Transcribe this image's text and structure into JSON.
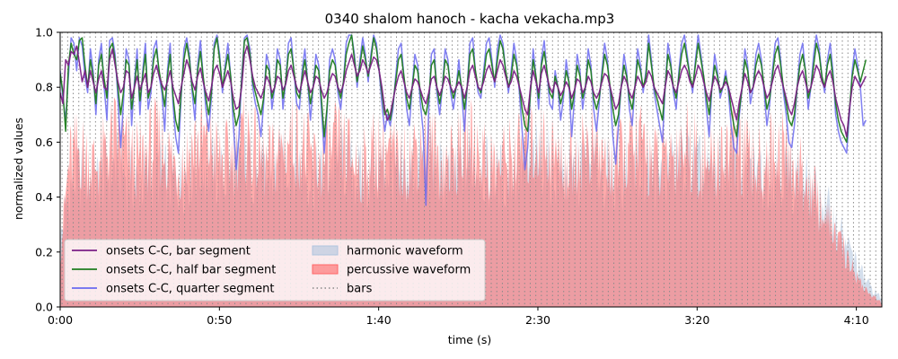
{
  "chart_data": {
    "type": "line",
    "title": "0340 shalom hanoch - kacha vekacha.mp3",
    "xlabel": "time (s)",
    "ylabel": "normalized values",
    "xlim": [
      0,
      258
    ],
    "ylim": [
      0,
      1.0
    ],
    "x_ticks": [
      {
        "value": 0,
        "label": "0:00"
      },
      {
        "value": 50,
        "label": "0:50"
      },
      {
        "value": 100,
        "label": "1:40"
      },
      {
        "value": 150,
        "label": "2:30"
      },
      {
        "value": 200,
        "label": "3:20"
      },
      {
        "value": 250,
        "label": "4:10"
      }
    ],
    "y_ticks": [
      {
        "value": 0.0,
        "label": "0.0"
      },
      {
        "value": 0.2,
        "label": "0.2"
      },
      {
        "value": 0.4,
        "label": "0.4"
      },
      {
        "value": 0.6,
        "label": "0.6"
      },
      {
        "value": 0.8,
        "label": "0.8"
      },
      {
        "value": 1.0,
        "label": "1.0"
      }
    ],
    "grid": false,
    "legend_position": "lower-left",
    "legend_columns": 2,
    "bars_interval_s": 1.75,
    "series": [
      {
        "name": "onsets C-C, bar segment",
        "kind": "line",
        "color": "#7b1f86",
        "x_range": [
          0,
          253
        ],
        "values": [
          0.78,
          0.74,
          0.9,
          0.88,
          0.93,
          0.92,
          0.95,
          0.89,
          0.82,
          0.86,
          0.8,
          0.86,
          0.82,
          0.78,
          0.83,
          0.86,
          0.8,
          0.79,
          0.9,
          0.94,
          0.88,
          0.82,
          0.78,
          0.8,
          0.86,
          0.85,
          0.76,
          0.8,
          0.84,
          0.79,
          0.82,
          0.85,
          0.78,
          0.8,
          0.85,
          0.88,
          0.84,
          0.81,
          0.79,
          0.82,
          0.86,
          0.8,
          0.77,
          0.74,
          0.8,
          0.85,
          0.9,
          0.87,
          0.82,
          0.79,
          0.84,
          0.87,
          0.82,
          0.78,
          0.75,
          0.8,
          0.86,
          0.88,
          0.85,
          0.8,
          0.83,
          0.86,
          0.82,
          0.76,
          0.72,
          0.73,
          0.8,
          0.92,
          0.95,
          0.9,
          0.84,
          0.8,
          0.78,
          0.76,
          0.79,
          0.84,
          0.82,
          0.78,
          0.8,
          0.84,
          0.83,
          0.79,
          0.81,
          0.86,
          0.88,
          0.84,
          0.8,
          0.78,
          0.82,
          0.86,
          0.82,
          0.78,
          0.8,
          0.84,
          0.83,
          0.79,
          0.76,
          0.78,
          0.82,
          0.85,
          0.84,
          0.8,
          0.78,
          0.81,
          0.86,
          0.89,
          0.92,
          0.88,
          0.84,
          0.86,
          0.9,
          0.88,
          0.85,
          0.88,
          0.91,
          0.9,
          0.86,
          0.8,
          0.72,
          0.68,
          0.7,
          0.75,
          0.8,
          0.84,
          0.86,
          0.82,
          0.78,
          0.76,
          0.8,
          0.83,
          0.82,
          0.79,
          0.76,
          0.74,
          0.78,
          0.83,
          0.84,
          0.8,
          0.77,
          0.8,
          0.84,
          0.83,
          0.8,
          0.78,
          0.8,
          0.82,
          0.8,
          0.76,
          0.8,
          0.86,
          0.88,
          0.84,
          0.8,
          0.79,
          0.82,
          0.86,
          0.88,
          0.85,
          0.82,
          0.86,
          0.9,
          0.88,
          0.84,
          0.8,
          0.82,
          0.86,
          0.84,
          0.8,
          0.76,
          0.72,
          0.7,
          0.8,
          0.86,
          0.82,
          0.78,
          0.85,
          0.88,
          0.84,
          0.8,
          0.78,
          0.82,
          0.8,
          0.77,
          0.79,
          0.82,
          0.8,
          0.76,
          0.79,
          0.83,
          0.82,
          0.78,
          0.8,
          0.84,
          0.82,
          0.78,
          0.76,
          0.78,
          0.82,
          0.85,
          0.84,
          0.8,
          0.76,
          0.72,
          0.74,
          0.8,
          0.84,
          0.82,
          0.78,
          0.76,
          0.8,
          0.84,
          0.82,
          0.8,
          0.82,
          0.86,
          0.84,
          0.8,
          0.78,
          0.76,
          0.74,
          0.8,
          0.86,
          0.84,
          0.8,
          0.78,
          0.82,
          0.86,
          0.88,
          0.86,
          0.82,
          0.8,
          0.84,
          0.88,
          0.86,
          0.82,
          0.78,
          0.75,
          0.8,
          0.84,
          0.82,
          0.79,
          0.8,
          0.82,
          0.8,
          0.76,
          0.72,
          0.68,
          0.75,
          0.8,
          0.85,
          0.82,
          0.78,
          0.8,
          0.84,
          0.86,
          0.84,
          0.8,
          0.76,
          0.78,
          0.82,
          0.86,
          0.88,
          0.84,
          0.8,
          0.76,
          0.72,
          0.7,
          0.74,
          0.8,
          0.84,
          0.86,
          0.82,
          0.78,
          0.8,
          0.84,
          0.88,
          0.86,
          0.82,
          0.8,
          0.84,
          0.86,
          0.82,
          0.76,
          0.72,
          0.68,
          0.66,
          0.62,
          0.72,
          0.8,
          0.84,
          0.82,
          0.8,
          0.82,
          0.84
        ]
      },
      {
        "name": "onsets C-C, half bar segment",
        "kind": "line",
        "color": "#1e7d1e",
        "x_range": [
          0,
          253
        ],
        "values": [
          0.85,
          0.78,
          0.64,
          0.88,
          0.96,
          0.92,
          0.9,
          0.97,
          0.98,
          0.88,
          0.8,
          0.9,
          0.84,
          0.74,
          0.88,
          0.92,
          0.83,
          0.76,
          0.94,
          0.96,
          0.9,
          0.8,
          0.7,
          0.78,
          0.9,
          0.88,
          0.72,
          0.8,
          0.9,
          0.75,
          0.84,
          0.92,
          0.76,
          0.8,
          0.9,
          0.94,
          0.86,
          0.8,
          0.73,
          0.84,
          0.92,
          0.77,
          0.68,
          0.64,
          0.78,
          0.9,
          0.96,
          0.9,
          0.8,
          0.74,
          0.86,
          0.93,
          0.84,
          0.76,
          0.7,
          0.78,
          0.94,
          0.98,
          0.9,
          0.8,
          0.86,
          0.92,
          0.84,
          0.72,
          0.66,
          0.7,
          0.82,
          0.97,
          0.98,
          0.92,
          0.82,
          0.78,
          0.74,
          0.7,
          0.76,
          0.88,
          0.86,
          0.76,
          0.8,
          0.9,
          0.88,
          0.76,
          0.82,
          0.92,
          0.94,
          0.86,
          0.78,
          0.76,
          0.84,
          0.9,
          0.82,
          0.74,
          0.8,
          0.88,
          0.86,
          0.76,
          0.62,
          0.72,
          0.86,
          0.9,
          0.88,
          0.8,
          0.76,
          0.82,
          0.92,
          0.96,
          0.99,
          0.9,
          0.82,
          0.88,
          0.95,
          0.9,
          0.84,
          0.9,
          0.98,
          0.94,
          0.86,
          0.78,
          0.7,
          0.72,
          0.68,
          0.74,
          0.82,
          0.9,
          0.92,
          0.84,
          0.76,
          0.72,
          0.8,
          0.88,
          0.86,
          0.78,
          0.72,
          0.7,
          0.76,
          0.88,
          0.9,
          0.8,
          0.74,
          0.8,
          0.9,
          0.88,
          0.8,
          0.76,
          0.8,
          0.86,
          0.8,
          0.72,
          0.8,
          0.92,
          0.94,
          0.86,
          0.8,
          0.78,
          0.84,
          0.92,
          0.94,
          0.88,
          0.82,
          0.9,
          0.97,
          0.94,
          0.86,
          0.8,
          0.84,
          0.92,
          0.88,
          0.8,
          0.72,
          0.66,
          0.64,
          0.78,
          0.9,
          0.84,
          0.76,
          0.88,
          0.93,
          0.86,
          0.78,
          0.76,
          0.84,
          0.8,
          0.74,
          0.78,
          0.86,
          0.82,
          0.72,
          0.78,
          0.88,
          0.84,
          0.76,
          0.8,
          0.9,
          0.86,
          0.76,
          0.72,
          0.76,
          0.84,
          0.92,
          0.88,
          0.8,
          0.72,
          0.66,
          0.7,
          0.8,
          0.88,
          0.84,
          0.76,
          0.72,
          0.8,
          0.9,
          0.86,
          0.8,
          0.84,
          0.96,
          0.88,
          0.8,
          0.76,
          0.72,
          0.68,
          0.8,
          0.92,
          0.88,
          0.8,
          0.76,
          0.84,
          0.92,
          0.96,
          0.9,
          0.84,
          0.8,
          0.88,
          0.96,
          0.9,
          0.84,
          0.76,
          0.7,
          0.8,
          0.88,
          0.84,
          0.78,
          0.8,
          0.84,
          0.8,
          0.72,
          0.66,
          0.62,
          0.72,
          0.8,
          0.9,
          0.86,
          0.78,
          0.8,
          0.88,
          0.92,
          0.88,
          0.8,
          0.72,
          0.76,
          0.84,
          0.92,
          0.95,
          0.88,
          0.8,
          0.74,
          0.68,
          0.66,
          0.7,
          0.8,
          0.88,
          0.92,
          0.86,
          0.76,
          0.8,
          0.88,
          0.96,
          0.92,
          0.84,
          0.8,
          0.88,
          0.92,
          0.84,
          0.74,
          0.68,
          0.64,
          0.62,
          0.6,
          0.72,
          0.84,
          0.9,
          0.86,
          0.82,
          0.86,
          0.9
        ]
      },
      {
        "name": "onsets C-C, quarter segment",
        "kind": "line",
        "color": "#6a6af0",
        "x_range": [
          0,
          253
        ],
        "values": [
          0.86,
          0.76,
          0.68,
          0.84,
          0.98,
          0.96,
          0.86,
          0.98,
          0.95,
          0.84,
          0.78,
          0.94,
          0.86,
          0.7,
          0.9,
          0.96,
          0.8,
          0.68,
          0.97,
          0.98,
          0.92,
          0.76,
          0.58,
          0.74,
          0.94,
          0.9,
          0.66,
          0.82,
          0.94,
          0.7,
          0.86,
          0.96,
          0.72,
          0.78,
          0.94,
          0.97,
          0.84,
          0.78,
          0.64,
          0.86,
          0.96,
          0.74,
          0.62,
          0.56,
          0.76,
          0.94,
          0.98,
          0.92,
          0.78,
          0.68,
          0.88,
          0.97,
          0.84,
          0.72,
          0.64,
          0.76,
          0.96,
          0.99,
          0.92,
          0.78,
          0.88,
          0.96,
          0.84,
          0.66,
          0.5,
          0.62,
          0.84,
          0.98,
          0.99,
          0.94,
          0.8,
          0.74,
          0.7,
          0.62,
          0.74,
          0.92,
          0.88,
          0.72,
          0.8,
          0.94,
          0.9,
          0.72,
          0.82,
          0.96,
          0.98,
          0.86,
          0.74,
          0.72,
          0.86,
          0.94,
          0.82,
          0.68,
          0.8,
          0.92,
          0.88,
          0.72,
          0.56,
          0.7,
          0.9,
          0.94,
          0.9,
          0.78,
          0.72,
          0.82,
          0.96,
          0.99,
          0.99,
          0.92,
          0.8,
          0.9,
          0.98,
          0.92,
          0.82,
          0.92,
          0.99,
          0.96,
          0.86,
          0.74,
          0.64,
          0.7,
          0.66,
          0.72,
          0.84,
          0.94,
          0.96,
          0.84,
          0.72,
          0.66,
          0.8,
          0.92,
          0.88,
          0.74,
          0.64,
          0.37,
          0.72,
          0.92,
          0.94,
          0.78,
          0.7,
          0.8,
          0.94,
          0.9,
          0.78,
          0.72,
          0.8,
          0.9,
          0.78,
          0.64,
          0.8,
          0.96,
          0.98,
          0.86,
          0.78,
          0.76,
          0.86,
          0.96,
          0.98,
          0.9,
          0.8,
          0.94,
          0.99,
          0.96,
          0.86,
          0.78,
          0.86,
          0.96,
          0.9,
          0.78,
          0.64,
          0.5,
          0.58,
          0.78,
          0.94,
          0.84,
          0.72,
          0.9,
          0.97,
          0.86,
          0.74,
          0.72,
          0.86,
          0.8,
          0.68,
          0.76,
          0.9,
          0.82,
          0.62,
          0.76,
          0.92,
          0.86,
          0.72,
          0.8,
          0.94,
          0.88,
          0.72,
          0.64,
          0.74,
          0.86,
          0.96,
          0.9,
          0.78,
          0.62,
          0.52,
          0.66,
          0.8,
          0.92,
          0.86,
          0.72,
          0.66,
          0.8,
          0.94,
          0.88,
          0.78,
          0.86,
          0.99,
          0.9,
          0.78,
          0.72,
          0.66,
          0.6,
          0.8,
          0.96,
          0.9,
          0.78,
          0.72,
          0.86,
          0.96,
          0.99,
          0.92,
          0.84,
          0.78,
          0.9,
          0.99,
          0.92,
          0.84,
          0.72,
          0.62,
          0.8,
          0.92,
          0.86,
          0.76,
          0.8,
          0.86,
          0.78,
          0.66,
          0.58,
          0.56,
          0.7,
          0.8,
          0.94,
          0.88,
          0.74,
          0.8,
          0.92,
          0.96,
          0.9,
          0.78,
          0.66,
          0.74,
          0.86,
          0.96,
          0.98,
          0.9,
          0.78,
          0.7,
          0.6,
          0.58,
          0.66,
          0.8,
          0.92,
          0.96,
          0.86,
          0.72,
          0.8,
          0.92,
          0.99,
          0.94,
          0.84,
          0.78,
          0.9,
          0.96,
          0.86,
          0.7,
          0.64,
          0.6,
          0.58,
          0.56,
          0.7,
          0.86,
          0.94,
          0.88,
          0.8,
          0.66,
          0.68
        ]
      },
      {
        "name": "harmonic waveform",
        "kind": "fill",
        "color": "#b0c4de",
        "x_range": [
          0,
          258
        ],
        "values": [
          0.3,
          0.55,
          0.62,
          0.6,
          0.58,
          0.62,
          0.66,
          0.64,
          0.6,
          0.58,
          0.62,
          0.64,
          0.6,
          0.58,
          0.62,
          0.66,
          0.68,
          0.64,
          0.6,
          0.62,
          0.66,
          0.68,
          0.64,
          0.6,
          0.62,
          0.66,
          0.7,
          0.66,
          0.62,
          0.6,
          0.64,
          0.68,
          0.66,
          0.62,
          0.6,
          0.62,
          0.66,
          0.64,
          0.6,
          0.62,
          0.66,
          0.68,
          0.64,
          0.6,
          0.62,
          0.66,
          0.7,
          0.66,
          0.62,
          0.6,
          0.62,
          0.64,
          0.66,
          0.68,
          0.7,
          0.66,
          0.62,
          0.6,
          0.64,
          0.68,
          0.66,
          0.62,
          0.6,
          0.62,
          0.66,
          0.68,
          0.64,
          0.6,
          0.62,
          0.66,
          0.7,
          0.66,
          0.62,
          0.6,
          0.64,
          0.68,
          0.66,
          0.62,
          0.6,
          0.62,
          0.66,
          0.64,
          0.6,
          0.58,
          0.55,
          0.5,
          0.45,
          0.38,
          0.3,
          0.22,
          0.14,
          0.08,
          0.04
        ]
      },
      {
        "name": "percussive waveform",
        "kind": "fill",
        "color": "#ff6666",
        "x_range": [
          0,
          258
        ],
        "values": [
          0.25,
          0.68,
          0.74,
          0.7,
          0.66,
          0.72,
          0.8,
          0.76,
          0.7,
          0.68,
          0.74,
          0.78,
          0.72,
          0.66,
          0.7,
          0.76,
          0.78,
          0.74,
          0.68,
          0.7,
          0.76,
          0.78,
          0.72,
          0.66,
          0.7,
          0.76,
          0.8,
          0.76,
          0.7,
          0.66,
          0.72,
          0.76,
          0.74,
          0.68,
          0.66,
          0.72,
          0.76,
          0.72,
          0.66,
          0.7,
          0.76,
          0.78,
          0.72,
          0.66,
          0.7,
          0.74,
          0.78,
          0.74,
          0.68,
          0.66,
          0.7,
          0.72,
          0.74,
          0.76,
          0.78,
          0.74,
          0.68,
          0.66,
          0.72,
          0.76,
          0.74,
          0.68,
          0.66,
          0.7,
          0.74,
          0.76,
          0.72,
          0.66,
          0.7,
          0.74,
          0.78,
          0.74,
          0.68,
          0.66,
          0.72,
          0.76,
          0.74,
          0.68,
          0.66,
          0.7,
          0.74,
          0.72,
          0.66,
          0.62,
          0.56,
          0.48,
          0.4,
          0.32,
          0.24,
          0.16,
          0.09,
          0.05,
          0.02
        ]
      }
    ],
    "legend": [
      {
        "label": "onsets C-C, bar segment",
        "swatch": "line",
        "color": "#7b1f86"
      },
      {
        "label": "onsets C-C, half bar segment",
        "swatch": "line",
        "color": "#1e7d1e"
      },
      {
        "label": "onsets C-C, quarter segment",
        "swatch": "line",
        "color": "#6a6af0"
      },
      {
        "label": "harmonic waveform",
        "swatch": "patch",
        "color": "#b0c4de"
      },
      {
        "label": "percussive waveform",
        "swatch": "patch",
        "color": "#ff6666"
      },
      {
        "label": "bars",
        "swatch": "dotted",
        "color": "#888888"
      }
    ]
  }
}
